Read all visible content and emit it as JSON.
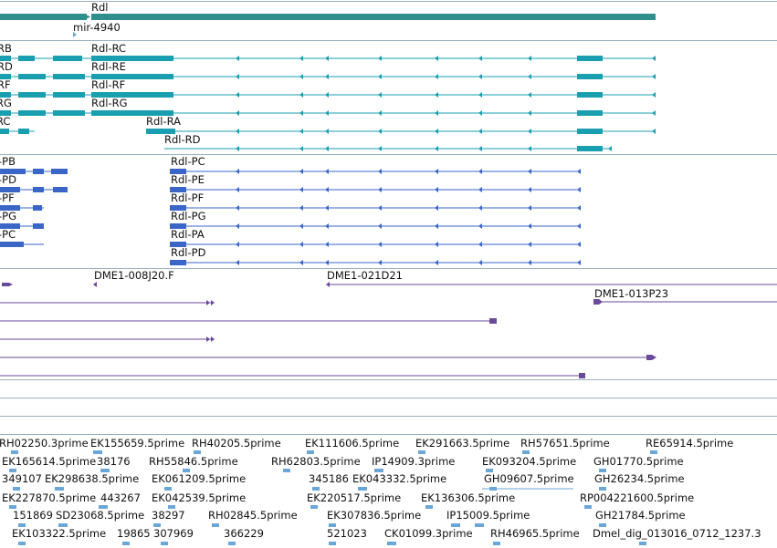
{
  "colors": {
    "gene": "#2f8f8c",
    "transcript": "#1a9fb0",
    "protein": "#3a66c8",
    "clone": "#6a4a9a",
    "est": "#6aa6d6",
    "separator": "#9ab0c0"
  },
  "tracks": {
    "genes": {
      "rdl": "Rdl",
      "mir": "mir-4940"
    },
    "transcripts": [
      {
        "label": "RB"
      },
      {
        "label": "RD"
      },
      {
        "label": "RF"
      },
      {
        "label": "RG"
      },
      {
        "label": "RC"
      },
      {
        "label": "Rdl-RC"
      },
      {
        "label": "Rdl-RE"
      },
      {
        "label": "Rdl-RF"
      },
      {
        "label": "Rdl-RG"
      },
      {
        "label": "Rdl-RA"
      },
      {
        "label": "Rdl-RD"
      }
    ],
    "proteins": [
      {
        "label": "-PB"
      },
      {
        "label": "-PD"
      },
      {
        "label": "-PF"
      },
      {
        "label": "-PG"
      },
      {
        "label": "-PC"
      },
      {
        "label": "Rdl-PC"
      },
      {
        "label": "Rdl-PE"
      },
      {
        "label": "Rdl-PF"
      },
      {
        "label": "Rdl-PG"
      },
      {
        "label": "Rdl-PA"
      },
      {
        "label": "Rdl-PD"
      }
    ],
    "clones": [
      {
        "label": "DME1-008J20.F"
      },
      {
        "label": "DME1-021D21"
      },
      {
        "label": "DME1-013P23"
      }
    ],
    "ests": [
      {
        "label": "RH02250.3prime"
      },
      {
        "label": "EK155659.5prime"
      },
      {
        "label": "RH40205.5prime"
      },
      {
        "label": "EK111606.5prime"
      },
      {
        "label": "EK291663.5prime"
      },
      {
        "label": "RH57651.5prime"
      },
      {
        "label": "RE65914.5prime"
      },
      {
        "label": "EK165614.5prime"
      },
      {
        "label": "38176"
      },
      {
        "label": "RH55846.5prime"
      },
      {
        "label": "RH62803.5prime"
      },
      {
        "label": "IP14909.3prime"
      },
      {
        "label": "EK093204.5prime"
      },
      {
        "label": "GH01770.5prime"
      },
      {
        "label": "349107"
      },
      {
        "label": "EK298638.5prime"
      },
      {
        "label": "EK061209.5prime"
      },
      {
        "label": "345186"
      },
      {
        "label": "EK043332.5prime"
      },
      {
        "label": "GH09607.5prime"
      },
      {
        "label": "GH26234.5prime"
      },
      {
        "label": "EK227870.5prime"
      },
      {
        "label": "443267"
      },
      {
        "label": "EK042539.5prime"
      },
      {
        "label": "EK220517.5prime"
      },
      {
        "label": "EK136306.5prime"
      },
      {
        "label": "RP004221600.5prime"
      },
      {
        "label": "151869"
      },
      {
        "label": "SD23068.5prime"
      },
      {
        "label": "38297"
      },
      {
        "label": "RH02845.5prime"
      },
      {
        "label": "EK307836.5prime"
      },
      {
        "label": "IP15009.5prime"
      },
      {
        "label": "GH21784.5prime"
      },
      {
        "label": "EK103322.5prime"
      },
      {
        "label": "19865"
      },
      {
        "label": "307969"
      },
      {
        "label": "366229"
      },
      {
        "label": "521023"
      },
      {
        "label": "CK01099.3prime"
      },
      {
        "label": "RH46965.5prime"
      },
      {
        "label": "Dmel_dig_013016_0712_1237.3"
      }
    ]
  }
}
